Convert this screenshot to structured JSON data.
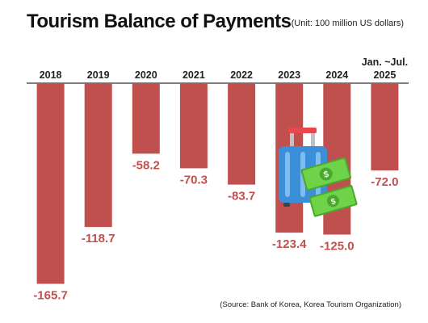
{
  "title": "Tourism Balance of Payments",
  "subtitle": "(Unit: 100 million US dollars)",
  "source": "(Source: Bank of Korea, Korea Tourism Organization)",
  "chart_data": {
    "type": "bar",
    "categories": [
      [
        "2018"
      ],
      [
        "2019"
      ],
      [
        "2020"
      ],
      [
        "2021"
      ],
      [
        "2022"
      ],
      [
        "2023"
      ],
      [
        "2024"
      ],
      [
        "Jan. ~Jul.",
        "2025"
      ]
    ],
    "values": [
      -165.7,
      -118.7,
      -58.2,
      -70.3,
      -83.7,
      -123.4,
      -125.0,
      -72.0
    ],
    "value_labels": [
      "-165.7",
      "-118.7",
      "-58.2",
      "-70.3",
      "-83.7",
      "-123.4",
      "-125.0",
      "-72.0"
    ],
    "bar_color": "#c0504d",
    "label_color": "#c0504d",
    "axis_color": "#333333",
    "ylim": [
      -180,
      0
    ],
    "grid": false,
    "legend": "none"
  },
  "illustration": {
    "suitcase_icon": "suitcase-icon",
    "money_icon": "money-stack-icon",
    "suitcase_color": "#3b8ed8",
    "handle_color": "#e8474b",
    "money_color": "#5cc53a"
  }
}
